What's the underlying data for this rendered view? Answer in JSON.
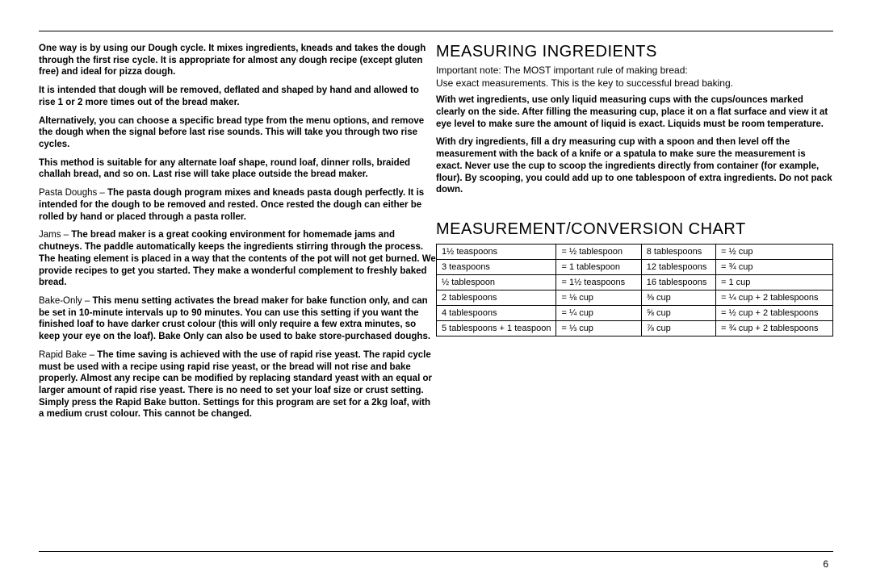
{
  "left": {
    "p1": "One way is by using our Dough cycle. It mixes ingredients, kneads and takes the dough through the first rise cycle. It is appropriate for almost any dough recipe (except gluten free) and ideal for pizza dough.",
    "p2": "It is intended that dough will be removed, deflated and shaped by hand and allowed to rise 1 or 2 more times out of the bread maker.",
    "p3": "Alternatively, you can choose a specific bread type from the menu options, and remove the dough when the signal before last rise sounds. This will take you through two rise cycles.",
    "p4": "This method is suitable for any alternate loaf shape, round loaf, dinner rolls, braided challah bread, and so on. Last rise will take place outside the bread maker.",
    "p5a": "Pasta Doughs – ",
    "p5b": "The pasta dough program mixes and kneads pasta dough perfectly. It is intended for the dough to be removed and rested. Once rested the dough can either be rolled by hand or placed through a pasta roller.",
    "p6a": "Jams – ",
    "p6b": "The bread maker is a great cooking environment for homemade jams and chutneys. The paddle automatically keeps the ingredients stirring through the process. The heating element is placed in a way that the contents of the pot will not get burned. We provide recipes to get you started. They make a wonderful complement to freshly baked bread.",
    "p7a": "Bake-Only – ",
    "p7b": "This menu setting activates the bread maker for bake function only, and can be set in 10-minute intervals up to 90 minutes. You can use this setting if you want the finished loaf to have darker crust colour (this will only require a few extra minutes, so keep your eye on the loaf). Bake Only can also be used to bake store-purchased doughs.",
    "p8a": "Rapid Bake – ",
    "p8b": "The time saving is achieved with the use of rapid rise yeast. The rapid cycle must be used with a recipe using rapid rise yeast, or the bread will not rise and bake properly. Almost any recipe can be modified by replacing standard yeast with an equal or larger amount of rapid rise yeast. There is no need to set your loaf size or crust setting. Simply press the Rapid Bake button. Settings for this program are set for a 2kg loaf, with a medium crust colour. This cannot be changed."
  },
  "right": {
    "h_measuring": "MEASURING INGREDIENTS",
    "note1": "Important note: The   MOST important rule of making bread:",
    "note2": "Use exact measurements. This is the key to successful bread baking.",
    "wet": "With wet ingredients, use only liquid measuring cups with the cups/ounces marked clearly on the side. After filling the measuring cup, place it on a flat surface and view it at eye level to make sure the amount of liquid is exact. Liquids must be room temperature.",
    "dry": "With dry ingredients, fill a dry measuring cup with a spoon and then level off the measurement with the back of a knife or a spatula to make sure the measurement is exact. Never use the cup to scoop the ingredients directly from container (for example, flour). By scooping, you could add up to one tablespoon of extra ingredients. Do not pack down.",
    "h_chart": "MEASUREMENT/CONVERSION CHART",
    "table": [
      [
        "1½ teaspoons",
        "= ½ tablespoon",
        "8 tablespoons",
        "= ½ cup"
      ],
      [
        "3 teaspoons",
        "= 1 tablespoon",
        "12 tablespoons",
        "= ¾ cup"
      ],
      [
        "½ tablespoon",
        "= 1½ teaspoons",
        "16 tablespoons",
        "= 1 cup"
      ],
      [
        "2 tablespoons",
        "= ⅛ cup",
        "⅜ cup",
        "= ¼ cup + 2 tablespoons"
      ],
      [
        "4 tablespoons",
        "= ¼ cup",
        "⅝ cup",
        "= ½ cup + 2 tablespoons"
      ],
      [
        "5 tablespoons + 1 teaspoon",
        "= ⅓ cup",
        "⅞ cup",
        "= ¾ cup + 2 tablespoons"
      ]
    ]
  },
  "page": "6"
}
